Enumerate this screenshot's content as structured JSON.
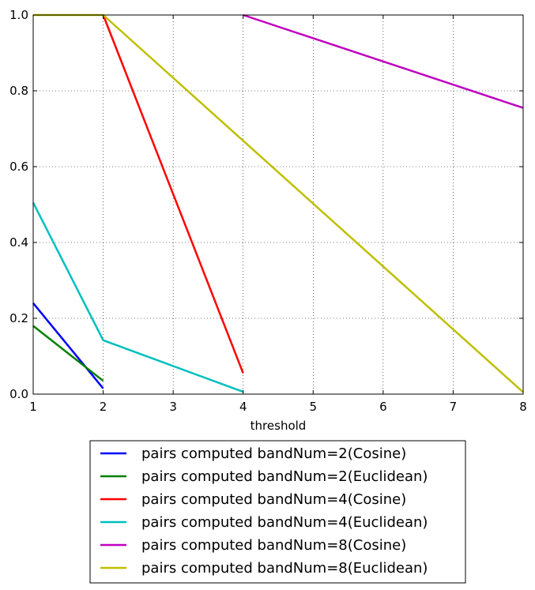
{
  "chart_data": {
    "type": "line",
    "xlabel": "threshold",
    "ylabel": "",
    "title": "",
    "xlim": [
      1,
      8
    ],
    "ylim": [
      0.0,
      1.0
    ],
    "xticks": [
      1,
      2,
      3,
      4,
      5,
      6,
      7,
      8
    ],
    "yticks": [
      0.0,
      0.2,
      0.4,
      0.6,
      0.8,
      1.0
    ],
    "xtick_labels": [
      "1",
      "2",
      "3",
      "4",
      "5",
      "6",
      "7",
      "8"
    ],
    "ytick_labels": [
      "0.0",
      "0.2",
      "0.4",
      "0.6",
      "0.8",
      "1.0"
    ],
    "grid": true,
    "legend_position": "below",
    "series": [
      {
        "name": "pairs computed bandNum=2(Cosine)",
        "color": "#0000ff",
        "x": [
          1,
          2
        ],
        "y": [
          0.24,
          0.015
        ]
      },
      {
        "name": "pairs computed bandNum=2(Euclidean)",
        "color": "#008000",
        "x": [
          1,
          2
        ],
        "y": [
          0.18,
          0.035
        ]
      },
      {
        "name": "pairs computed bandNum=4(Cosine)",
        "color": "#ff0000",
        "x": [
          2,
          4
        ],
        "y": [
          1.0,
          0.055
        ]
      },
      {
        "name": "pairs computed bandNum=4(Euclidean)",
        "color": "#00bfbf",
        "x": [
          1,
          2,
          4
        ],
        "y": [
          0.505,
          0.142,
          0.006
        ]
      },
      {
        "name": "pairs computed bandNum=8(Cosine)",
        "color": "#bf00bf",
        "x": [
          4,
          8
        ],
        "y": [
          1.0,
          0.755
        ]
      },
      {
        "name": "pairs computed bandNum=8(Euclidean)",
        "color": "#bfbf00",
        "x": [
          1,
          2,
          8
        ],
        "y": [
          1.0,
          1.0,
          0.005
        ]
      }
    ]
  }
}
